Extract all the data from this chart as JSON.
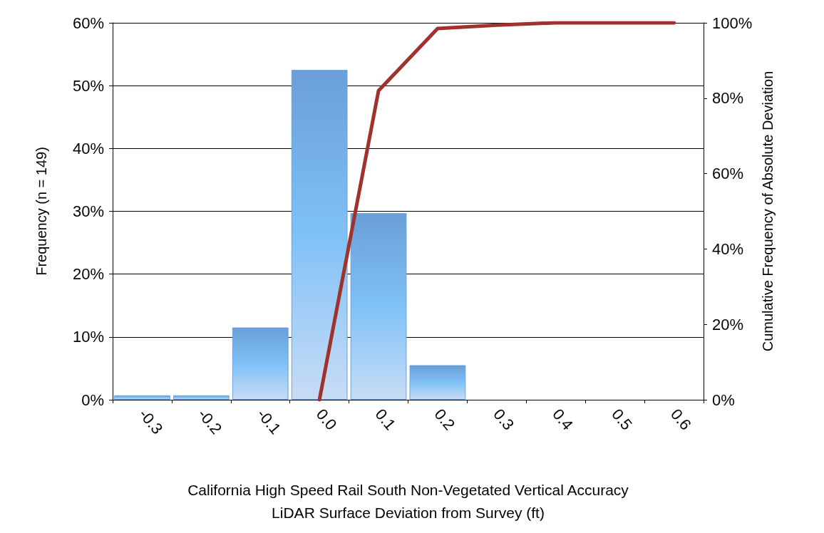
{
  "chart_data": {
    "type": "bar",
    "xlabel": "California High Speed Rail South Non-Vegetated Vertical Accuracy\nLiDAR Surface Deviation from Survey (ft)",
    "ylabel": "Frequency (n = 149)",
    "y2label": "Cumulative Frequency of Absolute Deviation",
    "categories": [
      "-0.3",
      "-0.2",
      "-0.1",
      "0.0",
      "0.1",
      "0.2",
      "0.3",
      "0.4",
      "0.5",
      "0.6"
    ],
    "series": [
      {
        "color": "#6a9fd8",
        "values": [
          0.7,
          0.7,
          11.5,
          52.5,
          29.7,
          5.5,
          0,
          0,
          0,
          0
        ]
      },
      {
        "type": "line",
        "axis": "y2",
        "color": "#a0322d",
        "values": [
          null,
          null,
          null,
          0,
          82,
          98.5,
          99.4,
          100,
          100,
          100
        ]
      }
    ],
    "ylim": [
      0,
      60
    ],
    "yticks": [
      {
        "value": 0,
        "label": "0%"
      },
      {
        "value": 10,
        "label": "10%"
      },
      {
        "value": 20,
        "label": "20%"
      },
      {
        "value": 30,
        "label": "30%"
      },
      {
        "value": 40,
        "label": "40%"
      },
      {
        "value": 50,
        "label": "50%"
      },
      {
        "value": 60,
        "label": "60%"
      }
    ],
    "y2lim": [
      0,
      100
    ],
    "y2ticks": [
      {
        "value": 0,
        "label": "0%"
      },
      {
        "value": 20,
        "label": "20%"
      },
      {
        "value": 40,
        "label": "40%"
      },
      {
        "value": 60,
        "label": "60%"
      },
      {
        "value": 80,
        "label": "80%"
      },
      {
        "value": 100,
        "label": "100%"
      }
    ],
    "grid": "y",
    "marker": "none",
    "line_style": "solid"
  }
}
